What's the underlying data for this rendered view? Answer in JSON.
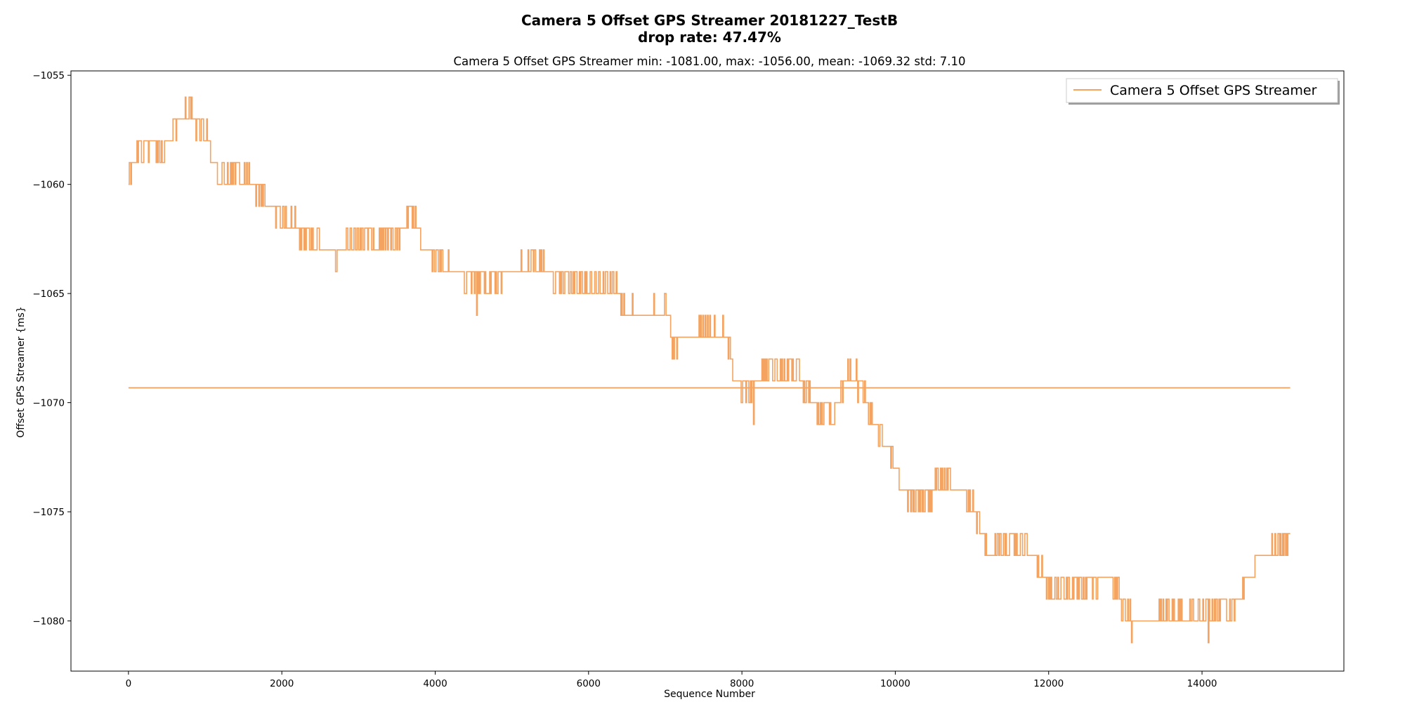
{
  "chart_data": {
    "type": "line",
    "title": "Camera 5 Offset GPS Streamer 20181227_TestB",
    "title_line2": "drop rate: 47.47%",
    "subtitle": "Camera 5 Offset GPS Streamer min: -1081.00, max: -1056.00, mean: -1069.32 std: 7.10",
    "xlabel": "Sequence Number",
    "ylabel": "Offset GPS Streamer {ms}",
    "xlim": [
      -750,
      15850
    ],
    "ylim": [
      -1082.3,
      -1054.8
    ],
    "xticks": [
      0,
      2000,
      4000,
      6000,
      8000,
      10000,
      12000,
      14000
    ],
    "xtick_labels": [
      "0",
      "2000",
      "4000",
      "6000",
      "8000",
      "10000",
      "12000",
      "14000"
    ],
    "yticks": [
      -1055,
      -1060,
      -1065,
      -1070,
      -1075,
      -1080
    ],
    "ytick_labels": [
      "−1055",
      "−1060",
      "−1065",
      "−1070",
      "−1075",
      "−1080"
    ],
    "grid": false,
    "legend": {
      "placement": "top-right",
      "entries": [
        "Camera 5 Offset GPS Streamer"
      ]
    },
    "series_color": "#f4a460",
    "series": [
      {
        "name": "Camera 5 Offset GPS Streamer",
        "step_profile": [
          [
            0,
            -1059.5
          ],
          [
            100,
            -1058.5
          ],
          [
            300,
            -1058
          ],
          [
            450,
            -1058.5
          ],
          [
            550,
            -1058
          ],
          [
            580,
            -1057.5
          ],
          [
            700,
            -1057
          ],
          [
            800,
            -1056.5
          ],
          [
            850,
            -1057
          ],
          [
            1000,
            -1057.5
          ],
          [
            1100,
            -1059
          ],
          [
            1200,
            -1059.5
          ],
          [
            1500,
            -1059.5
          ],
          [
            1700,
            -1060.5
          ],
          [
            2000,
            -1061.5
          ],
          [
            2400,
            -1062.5
          ],
          [
            2700,
            -1063.5
          ],
          [
            2850,
            -1062.5
          ],
          [
            3500,
            -1062.3
          ],
          [
            3700,
            -1061.5
          ],
          [
            3850,
            -1063
          ],
          [
            4000,
            -1063.5
          ],
          [
            4300,
            -1064
          ],
          [
            4600,
            -1064.5
          ],
          [
            5000,
            -1064
          ],
          [
            5400,
            -1063.5
          ],
          [
            5600,
            -1064.5
          ],
          [
            6300,
            -1064.5
          ],
          [
            6500,
            -1065.7
          ],
          [
            6700,
            -1066
          ],
          [
            7000,
            -1065.7
          ],
          [
            7100,
            -1067.5
          ],
          [
            7500,
            -1066.8
          ],
          [
            7800,
            -1067
          ],
          [
            7900,
            -1069
          ],
          [
            8100,
            -1069.5
          ],
          [
            8300,
            -1068.5
          ],
          [
            8700,
            -1068.5
          ],
          [
            8900,
            -1070
          ],
          [
            9200,
            -1070.5
          ],
          [
            9400,
            -1068.5
          ],
          [
            9600,
            -1069.5
          ],
          [
            9700,
            -1071
          ],
          [
            9900,
            -1072
          ],
          [
            10100,
            -1074
          ],
          [
            10400,
            -1074.5
          ],
          [
            10600,
            -1073.5
          ],
          [
            11000,
            -1074.5
          ],
          [
            11200,
            -1077
          ],
          [
            11400,
            -1076.5
          ],
          [
            11700,
            -1076.5
          ],
          [
            12000,
            -1078.5
          ],
          [
            12400,
            -1078.5
          ],
          [
            12800,
            -1078
          ],
          [
            13000,
            -1079.5
          ],
          [
            13200,
            -1080
          ],
          [
            14000,
            -1079.5
          ],
          [
            14200,
            -1079.5
          ],
          [
            14400,
            -1079.5
          ],
          [
            14600,
            -1078
          ],
          [
            14800,
            -1077
          ],
          [
            15150,
            -1076.5
          ]
        ]
      },
      {
        "name": "mean",
        "x": [
          0,
          15150
        ],
        "y": [
          -1069.32,
          -1069.32
        ]
      }
    ]
  }
}
